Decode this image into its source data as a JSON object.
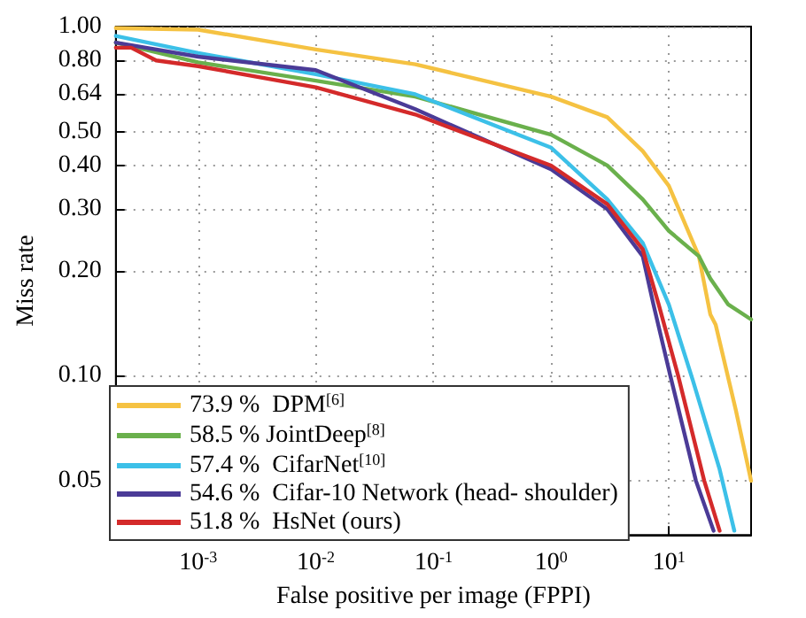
{
  "chart_data": {
    "type": "line",
    "xlabel": "False positive per image (FPPI)",
    "ylabel": "Miss rate",
    "log": "xy",
    "grid": true,
    "legend": "bottom left",
    "marker": "none",
    "line_style": "solid",
    "xlim": [
      0.0002,
      50
    ],
    "ylim": [
      0.035,
      1
    ],
    "xticks": [
      {
        "value": 0.001,
        "label": "10$^{-3}$"
      },
      {
        "value": 0.01,
        "label": "10$^{-2}$"
      },
      {
        "value": 0.1,
        "label": "10$^{-1}$"
      },
      {
        "value": 1,
        "label": "10$^{0}$"
      },
      {
        "value": 10,
        "label": "10$^{1}$"
      }
    ],
    "yticks": [
      {
        "value": 0.05,
        "label": "0.05"
      },
      {
        "value": 0.1,
        "label": "0.10"
      },
      {
        "value": 0.2,
        "label": "0.20"
      },
      {
        "value": 0.3,
        "label": "0.30"
      },
      {
        "value": 0.4,
        "label": "0.40"
      },
      {
        "value": 0.5,
        "label": "0.50"
      },
      {
        "value": 0.64,
        "label": "0.64"
      },
      {
        "value": 0.8,
        "label": "0.80"
      },
      {
        "value": 1,
        "label": "1.00"
      }
    ],
    "series": [
      {
        "name": "73.9 %  DPM$^{[6]}$",
        "color": "#f5c242",
        "x": [
          0.0002,
          0.001,
          0.01,
          0.07,
          1,
          3,
          6,
          10,
          18,
          22.5,
          25,
          37,
          50
        ],
        "values": [
          0.99,
          0.98,
          0.86,
          0.78,
          0.63,
          0.55,
          0.44,
          0.35,
          0.22,
          0.15,
          0.14,
          0.08,
          0.05
        ]
      },
      {
        "name": "58.5 % JointDeep$^{[8]}$",
        "color": "#6ab04c",
        "x": [
          0.0002,
          0.001,
          0.01,
          0.07,
          1,
          3,
          6,
          10,
          18,
          22.5,
          32,
          50
        ],
        "values": [
          0.9,
          0.79,
          0.7,
          0.63,
          0.49,
          0.4,
          0.32,
          0.26,
          0.22,
          0.19,
          0.16,
          0.145
        ]
      },
      {
        "name": "57.4 %  CifarNet$^{[10]}$",
        "color": "#3cc0e8",
        "x": [
          0.0002,
          0.001,
          0.01,
          0.07,
          1,
          3,
          6,
          10,
          16,
          27,
          36
        ],
        "values": [
          0.94,
          0.84,
          0.73,
          0.64,
          0.45,
          0.32,
          0.24,
          0.16,
          0.097,
          0.054,
          0.036
        ]
      },
      {
        "name": "54.6 %  Cifar-10 Network (head- shoulder)",
        "color": "#4b3b97",
        "x": [
          0.0002,
          0.001,
          0.01,
          0.07,
          1,
          3,
          6,
          7.4,
          10.3,
          17,
          24
        ],
        "values": [
          0.9,
          0.82,
          0.75,
          0.58,
          0.39,
          0.3,
          0.22,
          0.16,
          0.1,
          0.05,
          0.036
        ]
      },
      {
        "name": "51.8 %  HsNet (ours)",
        "color": "#d42a2a",
        "x": [
          0.0002,
          0.00027,
          0.00044,
          0.001,
          0.01,
          0.07,
          1,
          3,
          6,
          8.2,
          12,
          20,
          27
        ],
        "values": [
          0.87,
          0.87,
          0.8,
          0.77,
          0.67,
          0.56,
          0.4,
          0.31,
          0.23,
          0.16,
          0.1,
          0.05,
          0.036
        ]
      }
    ]
  }
}
